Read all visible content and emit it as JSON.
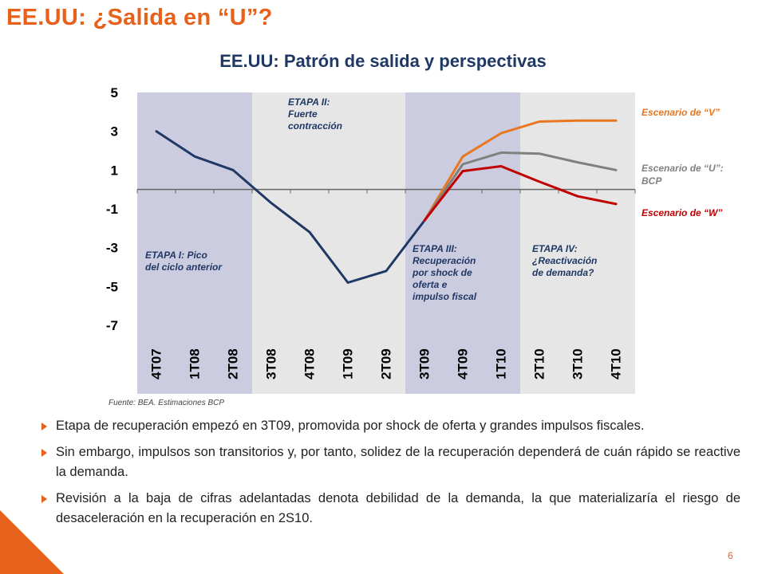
{
  "slide": {
    "title": "EE.UU: ¿Salida en “U”?",
    "source": "Fuente: BEA. Estimaciones BCP",
    "page_number": "6",
    "bullets": [
      "Etapa de recuperación empezó en 3T09, promovida por shock de oferta y grandes impulsos fiscales.",
      "Sin embargo, impulsos son transitorios y, por tanto, solidez de la recuperación dependerá de cuán rápido se reactive la demanda.",
      "Revisión a la baja de cifras adelantadas denota debilidad de la demanda, la que materializaría el riesgo de desaceleración en la recuperación en 2S10."
    ],
    "colors": {
      "accent": "#E8611A",
      "title_navy": "#1F3864"
    }
  },
  "chart_data": {
    "type": "line",
    "title": "EE.UU: Patrón de salida y perspectivas",
    "categories": [
      "4T07",
      "1T08",
      "2T08",
      "3T08",
      "4T08",
      "1T09",
      "2T09",
      "3T09",
      "4T09",
      "1T10",
      "2T10",
      "3T10",
      "4T10"
    ],
    "ylim": [
      -7,
      5
    ],
    "yticks": [
      5,
      3,
      1,
      -1,
      -3,
      -5,
      -7
    ],
    "series": [
      {
        "name": "",
        "color": "#1F3864",
        "values": [
          3.0,
          1.7,
          1.0,
          -0.7,
          -2.2,
          -4.8,
          -4.2,
          -1.6,
          null,
          null,
          null,
          null,
          null
        ]
      },
      {
        "name": "Escenario de “V”",
        "color": "#E87722",
        "values": [
          null,
          null,
          null,
          null,
          null,
          null,
          null,
          -1.6,
          1.7,
          2.9,
          3.5,
          3.55,
          3.55
        ]
      },
      {
        "name": "Escenario de “U”: BCP",
        "color": "#808080",
        "values": [
          null,
          null,
          null,
          null,
          null,
          null,
          null,
          -1.6,
          1.3,
          1.9,
          1.85,
          1.4,
          1.0
        ]
      },
      {
        "name": "Escenario de “W”",
        "color": "#C00000",
        "values": [
          null,
          null,
          null,
          null,
          null,
          null,
          null,
          -1.6,
          0.95,
          1.2,
          0.4,
          -0.35,
          -0.75
        ]
      }
    ],
    "stages": [
      {
        "label": "ETAPA I:  Pico del ciclo anterior",
        "from": "4T07",
        "to": "2T08",
        "shade": "#CCCCE0"
      },
      {
        "label": "ETAPA II: Fuerte contracción",
        "from": "3T08",
        "to": "2T09",
        "shade": "#E6E6E6"
      },
      {
        "label": "ETAPA III: Recuperación por shock de oferta e impulso fiscal",
        "from": "3T09",
        "to": "1T10",
        "shade": "#CCCCE0"
      },
      {
        "label": "ETAPA IV: ¿Reactivación de demanda?",
        "from": "2T10",
        "to": "4T10",
        "shade": "#E6E6E6"
      }
    ],
    "grid": false,
    "legend_position": "right"
  }
}
